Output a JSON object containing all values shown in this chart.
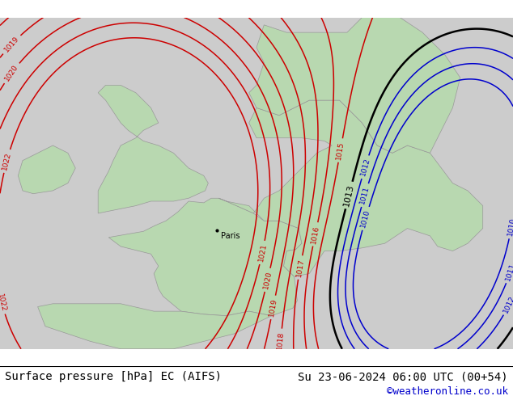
{
  "title_left": "Surface pressure [hPa] EC (AIFS)",
  "title_right": "Su 23-06-2024 06:00 UTC (00+54)",
  "credit": "©weatheronline.co.uk",
  "bg_color": "#cccccc",
  "land_color": "#b8d8b0",
  "contour_color_red": "#cc0000",
  "contour_color_black": "#000000",
  "contour_color_blue": "#0000cc",
  "paris_lat": 48.85,
  "paris_lon": 2.35,
  "title_fontsize": 10,
  "credit_fontsize": 9
}
